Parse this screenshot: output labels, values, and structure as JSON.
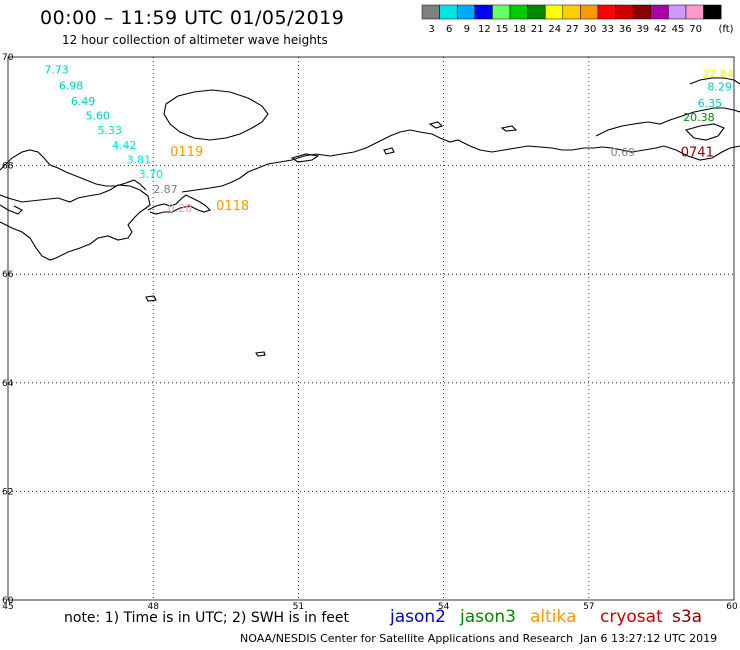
{
  "header": {
    "title": "00:00 – 11:59 UTC 01/05/2019",
    "subtitle": "12 hour collection of altimeter wave heights"
  },
  "legend": {
    "unit": "(ft)",
    "bins": [
      {
        "label": "3",
        "color": "#808080"
      },
      {
        "label": "6",
        "color": "#00e6e6"
      },
      {
        "label": "9",
        "color": "#00aaff"
      },
      {
        "label": "12",
        "color": "#0000ff"
      },
      {
        "label": "15",
        "color": "#66ff66"
      },
      {
        "label": "18",
        "color": "#00cc00"
      },
      {
        "label": "21",
        "color": "#008800"
      },
      {
        "label": "24",
        "color": "#ffff00"
      },
      {
        "label": "27",
        "color": "#ffcc00"
      },
      {
        "label": "30",
        "color": "#ff9900"
      },
      {
        "label": "33",
        "color": "#ff0000"
      },
      {
        "label": "36",
        "color": "#cc0000"
      },
      {
        "label": "39",
        "color": "#880000"
      },
      {
        "label": "42",
        "color": "#aa00aa"
      },
      {
        "label": "45",
        "color": "#cc99ff"
      },
      {
        "label": "70",
        "color": "#ff99cc"
      },
      {
        "label": "",
        "color": "#000000"
      }
    ]
  },
  "map": {
    "lon_labels": [
      "45",
      "48",
      "51",
      "54",
      "57",
      "60"
    ],
    "lat_labels": [
      "70",
      "68",
      "66",
      "64",
      "62",
      "60"
    ],
    "observations": [
      {
        "text": "7.73",
        "color": "#00cccc",
        "lon": 45.75,
        "lat": 69.7
      },
      {
        "text": "6.98",
        "color": "#00cccc",
        "lon": 46.05,
        "lat": 69.4
      },
      {
        "text": "6.49",
        "color": "#00cccc",
        "lon": 46.3,
        "lat": 69.12
      },
      {
        "text": "5.60",
        "color": "#00cccc",
        "lon": 46.6,
        "lat": 68.85
      },
      {
        "text": "5.33",
        "color": "#00e6e6",
        "lon": 46.85,
        "lat": 68.58
      },
      {
        "text": "4.42",
        "color": "#00e6e6",
        "lon": 47.15,
        "lat": 68.31
      },
      {
        "text": "3.81",
        "color": "#00e6e6",
        "lon": 47.45,
        "lat": 68.04
      },
      {
        "text": "3.70",
        "color": "#00e6e6",
        "lon": 47.7,
        "lat": 67.77
      },
      {
        "text": "2.87",
        "color": "#808080",
        "lon": 48.0,
        "lat": 67.5
      },
      {
        "text": "0.28",
        "color": "#ff99cc",
        "lon": 48.3,
        "lat": 67.15
      },
      {
        "text": "22.84",
        "color": "#ffff00",
        "lon": 59.35,
        "lat": 69.62
      },
      {
        "text": "8.29",
        "color": "#00cccc",
        "lon": 59.45,
        "lat": 69.38
      },
      {
        "text": "6.35",
        "color": "#00cccc",
        "lon": 59.25,
        "lat": 69.08
      },
      {
        "text": "20.38",
        "color": "#008800",
        "lon": 58.95,
        "lat": 68.82
      },
      {
        "text": "0.69",
        "color": "#808080",
        "lon": 57.45,
        "lat": 68.18
      }
    ],
    "time_labels": [
      {
        "text": "0119",
        "color": "#ff9900",
        "lon": 48.35,
        "lat": 68.18
      },
      {
        "text": "0118",
        "color": "#ff9900",
        "lon": 49.3,
        "lat": 67.18
      },
      {
        "text": "0741",
        "color": "#880000",
        "lon": 58.9,
        "lat": 68.17
      }
    ]
  },
  "footer": {
    "note": "note:  1) Time is in UTC;  2) SWH is in feet",
    "satellites": [
      {
        "name": "jason2",
        "color": "#0000cc"
      },
      {
        "name": "jason3",
        "color": "#008800"
      },
      {
        "name": "altika",
        "color": "#ff9900"
      },
      {
        "name": "cryosat",
        "color": "#cc0000"
      },
      {
        "name": "s3a",
        "color": "#880000"
      }
    ],
    "credit": "NOAA/NESDIS Center for Satellite Applications and Research",
    "generated": "Jan  6 13:27:12 UTC 2019"
  }
}
